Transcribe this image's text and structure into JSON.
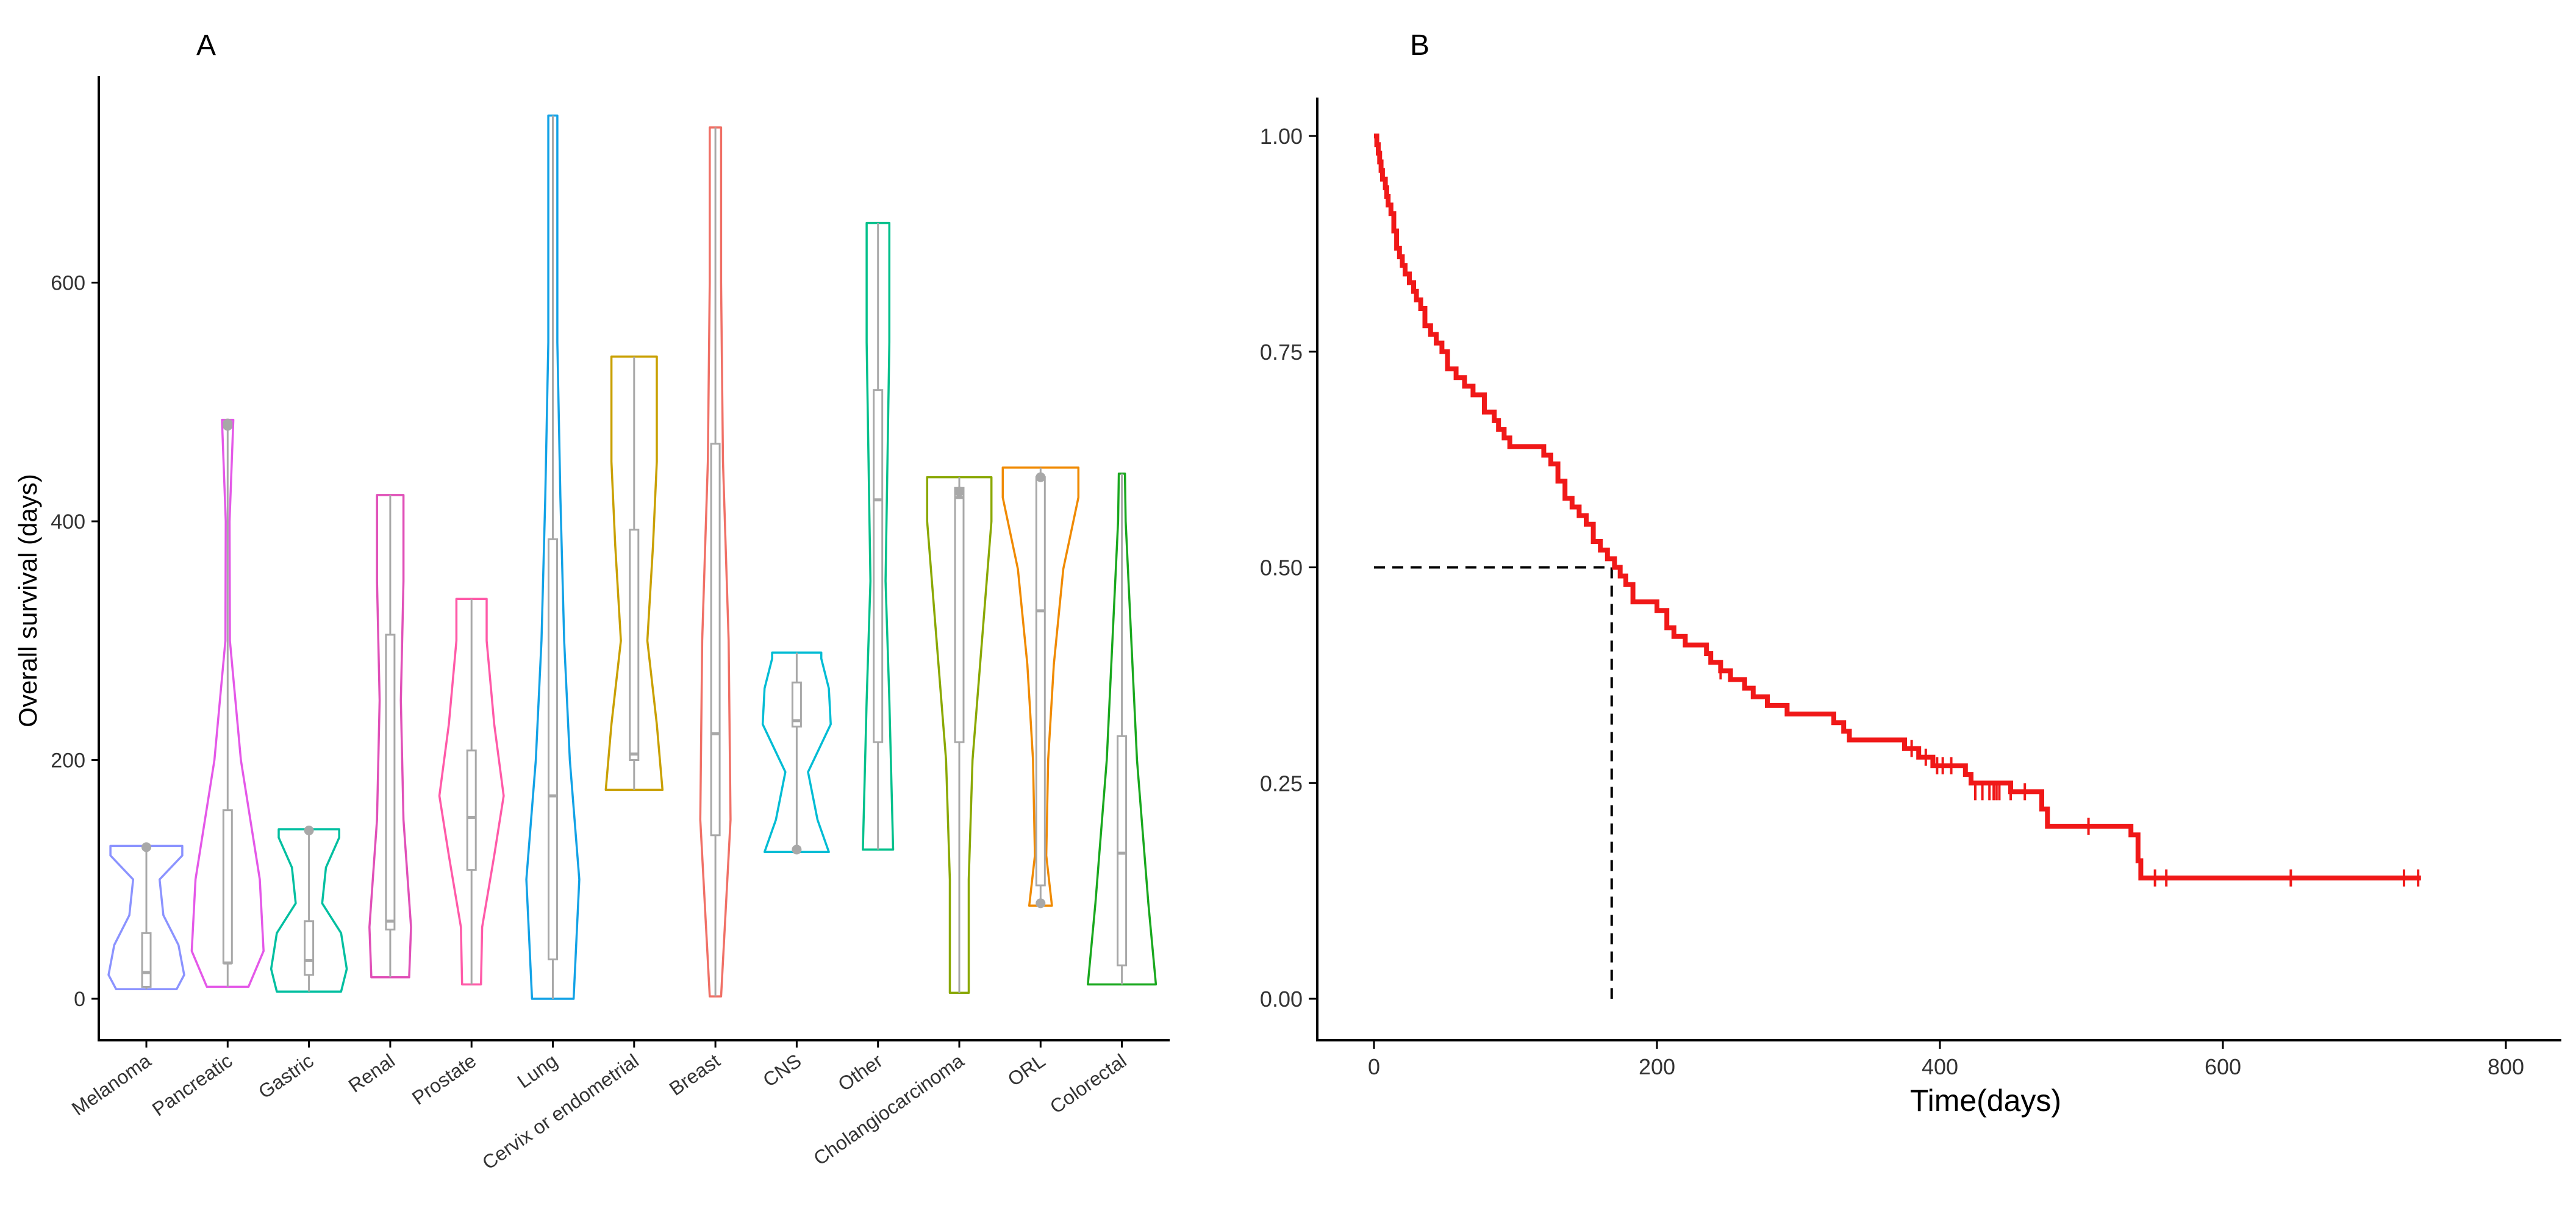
{
  "panel_a": {
    "label": "A",
    "ylabel": "Overall survival (days)",
    "chart_data": {
      "type": "violin",
      "ylim": [
        -35,
        780
      ],
      "yticks": [
        0,
        200,
        400,
        600
      ],
      "categories": [
        "Melanoma",
        "Pancreatic",
        "Gastric",
        "Renal",
        "Prostate",
        "Lung",
        "Cervix or endometrial",
        "Breast",
        "CNS",
        "Other",
        "Cholangiocarcinoma",
        "ORL",
        "Colorectal"
      ],
      "series": [
        {
          "category": "Melanoma",
          "color": "#8b93ff",
          "min": 8,
          "max": 128,
          "q1": 10,
          "median": 22,
          "q3": 55,
          "outliers": [
            127
          ],
          "shape": [
            [
              8,
              0.8
            ],
            [
              20,
              1.0
            ],
            [
              45,
              0.85
            ],
            [
              70,
              0.45
            ],
            [
              100,
              0.35
            ],
            [
              120,
              0.95
            ],
            [
              128,
              0.95
            ]
          ]
        },
        {
          "category": "Pancreatic",
          "color": "#e458e8",
          "min": 10,
          "max": 485,
          "q1": 30,
          "median": 30,
          "q3": 158,
          "outliers": [
            480,
            482
          ],
          "shape": [
            [
              10,
              0.55
            ],
            [
              40,
              0.95
            ],
            [
              100,
              0.85
            ],
            [
              200,
              0.35
            ],
            [
              300,
              0.06
            ],
            [
              400,
              0.05
            ],
            [
              485,
              0.15
            ]
          ]
        },
        {
          "category": "Gastric",
          "color": "#00bfa0",
          "min": 6,
          "max": 142,
          "q1": 20,
          "median": 32,
          "q3": 65,
          "outliers": [
            141
          ],
          "shape": [
            [
              6,
              0.85
            ],
            [
              25,
              1.0
            ],
            [
              55,
              0.85
            ],
            [
              80,
              0.35
            ],
            [
              110,
              0.45
            ],
            [
              135,
              0.8
            ],
            [
              142,
              0.8
            ]
          ]
        },
        {
          "category": "Renal",
          "color": "#e050b8",
          "min": 18,
          "max": 422,
          "q1": 58,
          "median": 65,
          "q3": 305,
          "outliers": [],
          "shape": [
            [
              18,
              0.5
            ],
            [
              60,
              0.55
            ],
            [
              150,
              0.35
            ],
            [
              250,
              0.28
            ],
            [
              350,
              0.35
            ],
            [
              422,
              0.35
            ]
          ]
        },
        {
          "category": "Prostate",
          "color": "#ff5aa8",
          "min": 12,
          "max": 335,
          "q1": 108,
          "median": 152,
          "q3": 208,
          "outliers": [],
          "shape": [
            [
              12,
              0.25
            ],
            [
              60,
              0.28
            ],
            [
              120,
              0.6
            ],
            [
              170,
              0.85
            ],
            [
              230,
              0.6
            ],
            [
              300,
              0.4
            ],
            [
              335,
              0.4
            ]
          ]
        },
        {
          "category": "Lung",
          "color": "#12a2e6",
          "min": 0,
          "max": 740,
          "q1": 33,
          "median": 170,
          "q3": 385,
          "outliers": [],
          "shape": [
            [
              0,
              0.55
            ],
            [
              100,
              0.7
            ],
            [
              200,
              0.45
            ],
            [
              300,
              0.3
            ],
            [
              420,
              0.2
            ],
            [
              550,
              0.12
            ],
            [
              680,
              0.12
            ],
            [
              740,
              0.12
            ]
          ]
        },
        {
          "category": "Cervix or endometrial",
          "color": "#c9a000",
          "min": 175,
          "max": 538,
          "q1": 200,
          "median": 205,
          "q3": 393,
          "outliers": [],
          "shape": [
            [
              175,
              0.75
            ],
            [
              230,
              0.6
            ],
            [
              300,
              0.35
            ],
            [
              380,
              0.5
            ],
            [
              450,
              0.6
            ],
            [
              538,
              0.6
            ]
          ]
        },
        {
          "category": "Breast",
          "color": "#f07066",
          "min": 2,
          "max": 730,
          "q1": 137,
          "median": 222,
          "q3": 465,
          "outliers": [],
          "shape": [
            [
              2,
              0.15
            ],
            [
              150,
              0.4
            ],
            [
              300,
              0.35
            ],
            [
              450,
              0.2
            ],
            [
              600,
              0.15
            ],
            [
              730,
              0.15
            ]
          ]
        },
        {
          "category": "CNS",
          "color": "#00bcd4",
          "min": 123,
          "max": 290,
          "q1": 228,
          "median": 233,
          "q3": 265,
          "outliers": [
            125
          ],
          "shape": [
            [
              123,
              0.85
            ],
            [
              150,
              0.55
            ],
            [
              190,
              0.3
            ],
            [
              230,
              0.9
            ],
            [
              260,
              0.85
            ],
            [
              285,
              0.65
            ],
            [
              290,
              0.65
            ]
          ]
        },
        {
          "category": "Other",
          "color": "#00c08b",
          "min": 125,
          "max": 650,
          "q1": 215,
          "median": 418,
          "q3": 510,
          "outliers": [],
          "shape": [
            [
              125,
              0.4
            ],
            [
              250,
              0.3
            ],
            [
              350,
              0.2
            ],
            [
              450,
              0.25
            ],
            [
              550,
              0.3
            ],
            [
              650,
              0.3
            ]
          ]
        },
        {
          "category": "Cholangiocarcinoma",
          "color": "#8aa800",
          "min": 5,
          "max": 437,
          "q1": 215,
          "median": 420,
          "q3": 428,
          "outliers": [
            425
          ],
          "shape": [
            [
              5,
              0.25
            ],
            [
              100,
              0.25
            ],
            [
              200,
              0.35
            ],
            [
              300,
              0.6
            ],
            [
              400,
              0.85
            ],
            [
              437,
              0.85
            ]
          ]
        },
        {
          "category": "ORL",
          "color": "#f08a00",
          "min": 78,
          "max": 445,
          "q1": 95,
          "median": 325,
          "q3": 437,
          "outliers": [
            80,
            437
          ],
          "shape": [
            [
              78,
              0.3
            ],
            [
              120,
              0.15
            ],
            [
              200,
              0.2
            ],
            [
              280,
              0.35
            ],
            [
              360,
              0.6
            ],
            [
              420,
              1.0
            ],
            [
              445,
              1.0
            ]
          ]
        },
        {
          "category": "Colorectal",
          "color": "#19a81e",
          "min": 12,
          "max": 440,
          "q1": 28,
          "median": 122,
          "q3": 220,
          "outliers": [],
          "shape": [
            [
              12,
              0.9
            ],
            [
              80,
              0.7
            ],
            [
              200,
              0.4
            ],
            [
              300,
              0.25
            ],
            [
              400,
              0.1
            ],
            [
              440,
              0.08
            ]
          ]
        }
      ]
    }
  },
  "panel_b": {
    "label": "B",
    "xlabel": "Time(days)",
    "chart_data": {
      "type": "line",
      "xlim": [
        -40,
        800
      ],
      "ylim": [
        -0.05,
        1.05
      ],
      "xticks": [
        0,
        200,
        400,
        600,
        800
      ],
      "yticks": [
        "0.00",
        "0.25",
        "0.50",
        "0.75",
        "1.00"
      ],
      "curve_color": "#f01818",
      "median_line": {
        "x": 168,
        "y": 0.5
      },
      "steps": [
        [
          0,
          1.0
        ],
        [
          2,
          0.99
        ],
        [
          3,
          0.98
        ],
        [
          4,
          0.97
        ],
        [
          5,
          0.96
        ],
        [
          6,
          0.95
        ],
        [
          8,
          0.94
        ],
        [
          9,
          0.93
        ],
        [
          10,
          0.92
        ],
        [
          12,
          0.91
        ],
        [
          14,
          0.89
        ],
        [
          16,
          0.87
        ],
        [
          18,
          0.86
        ],
        [
          20,
          0.85
        ],
        [
          22,
          0.84
        ],
        [
          25,
          0.83
        ],
        [
          28,
          0.82
        ],
        [
          30,
          0.81
        ],
        [
          33,
          0.8
        ],
        [
          36,
          0.78
        ],
        [
          40,
          0.77
        ],
        [
          44,
          0.76
        ],
        [
          48,
          0.75
        ],
        [
          52,
          0.73
        ],
        [
          58,
          0.72
        ],
        [
          64,
          0.71
        ],
        [
          70,
          0.7
        ],
        [
          78,
          0.68
        ],
        [
          85,
          0.67
        ],
        [
          88,
          0.66
        ],
        [
          92,
          0.65
        ],
        [
          96,
          0.64
        ],
        [
          105,
          0.64
        ],
        [
          120,
          0.63
        ],
        [
          125,
          0.62
        ],
        [
          130,
          0.6
        ],
        [
          135,
          0.58
        ],
        [
          140,
          0.57
        ],
        [
          145,
          0.56
        ],
        [
          150,
          0.55
        ],
        [
          155,
          0.53
        ],
        [
          160,
          0.52
        ],
        [
          165,
          0.51
        ],
        [
          170,
          0.5
        ],
        [
          174,
          0.49
        ],
        [
          178,
          0.48
        ],
        [
          183,
          0.46
        ],
        [
          192,
          0.46
        ],
        [
          200,
          0.45
        ],
        [
          207,
          0.43
        ],
        [
          212,
          0.42
        ],
        [
          220,
          0.41
        ],
        [
          235,
          0.4
        ],
        [
          238,
          0.39
        ],
        [
          245,
          0.38
        ],
        [
          252,
          0.37
        ],
        [
          262,
          0.36
        ],
        [
          268,
          0.35
        ],
        [
          278,
          0.34
        ],
        [
          292,
          0.33
        ],
        [
          325,
          0.32
        ],
        [
          332,
          0.31
        ],
        [
          336,
          0.3
        ],
        [
          375,
          0.29
        ],
        [
          385,
          0.28
        ],
        [
          395,
          0.27
        ],
        [
          418,
          0.26
        ],
        [
          422,
          0.25
        ],
        [
          450,
          0.24
        ],
        [
          472,
          0.22
        ],
        [
          476,
          0.2
        ],
        [
          535,
          0.19
        ],
        [
          540,
          0.16
        ],
        [
          542,
          0.14
        ],
        [
          740,
          0.14
        ]
      ],
      "censored": [
        [
          245,
          0.38
        ],
        [
          380,
          0.29
        ],
        [
          390,
          0.28
        ],
        [
          398,
          0.27
        ],
        [
          402,
          0.27
        ],
        [
          408,
          0.27
        ],
        [
          425,
          0.24
        ],
        [
          430,
          0.24
        ],
        [
          435,
          0.24
        ],
        [
          438,
          0.24
        ],
        [
          440,
          0.24
        ],
        [
          442,
          0.24
        ],
        [
          450,
          0.24
        ],
        [
          460,
          0.24
        ],
        [
          505,
          0.2
        ],
        [
          552,
          0.14
        ],
        [
          560,
          0.14
        ],
        [
          648,
          0.14
        ],
        [
          728,
          0.14
        ],
        [
          738,
          0.14
        ]
      ]
    }
  }
}
